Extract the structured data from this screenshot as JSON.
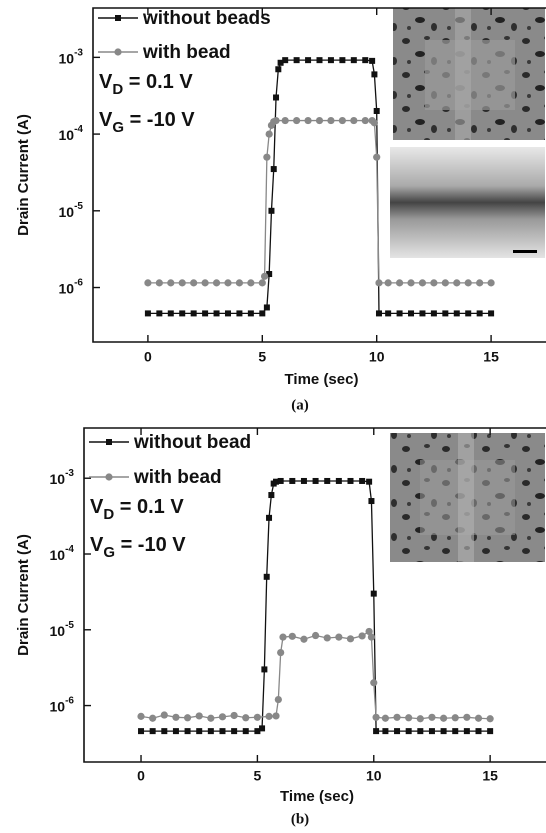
{
  "chart_data": [
    {
      "type": "line",
      "caption": "(a)",
      "xlabel": "Time (sec)",
      "ylabel": "Drain Current (A)",
      "xlim": [
        -2.4,
        17.4
      ],
      "xticks": [
        0,
        5,
        10,
        15
      ],
      "ylim": [
        1.95e-07,
        0.0044
      ],
      "log_y": true,
      "yticks": [
        {
          "value": 0.001,
          "label": "10",
          "exponent": "-3"
        },
        {
          "value": 0.0001,
          "label": "10",
          "exponent": "-4"
        },
        {
          "value": 1e-05,
          "label": "10",
          "exponent": "-5"
        },
        {
          "value": 1e-06,
          "label": "10",
          "exponent": "-6"
        }
      ],
      "annotations": [
        {
          "text": "V",
          "subscript": "D",
          "suffix": " = 0.1 V"
        },
        {
          "text": "V",
          "subscript": "G",
          "suffix": " = -10 V"
        }
      ],
      "series": [
        {
          "name": "without beads",
          "color": "#111111",
          "marker": "square",
          "x": [
            0,
            0.5,
            1,
            1.5,
            2,
            2.5,
            3,
            3.5,
            4,
            4.5,
            5,
            5.2,
            5.3,
            5.4,
            5.5,
            5.6,
            5.7,
            5.8,
            6,
            6.5,
            7,
            7.5,
            8,
            8.5,
            9,
            9.5,
            9.8,
            9.9,
            10,
            10.1,
            10.5,
            11,
            11.5,
            12,
            12.5,
            13,
            13.5,
            14,
            14.5,
            15
          ],
          "values": [
            4.6e-07,
            4.6e-07,
            4.6e-07,
            4.6e-07,
            4.6e-07,
            4.6e-07,
            4.6e-07,
            4.6e-07,
            4.6e-07,
            4.6e-07,
            4.6e-07,
            5.5e-07,
            1.5e-06,
            1e-05,
            3.5e-05,
            0.0003,
            0.0007,
            0.00085,
            0.00092,
            0.00092,
            0.00092,
            0.00092,
            0.00092,
            0.00092,
            0.00092,
            0.00092,
            0.0009,
            0.0006,
            0.0002,
            4.6e-07,
            4.6e-07,
            4.6e-07,
            4.6e-07,
            4.6e-07,
            4.6e-07,
            4.6e-07,
            4.6e-07,
            4.6e-07,
            4.6e-07,
            4.6e-07
          ]
        },
        {
          "name": "with bead",
          "color": "#888888",
          "marker": "circle",
          "x": [
            0,
            0.5,
            1,
            1.5,
            2,
            2.5,
            3,
            3.5,
            4,
            4.5,
            5,
            5.1,
            5.2,
            5.3,
            5.4,
            5.5,
            5.6,
            6,
            6.5,
            7,
            7.5,
            8,
            8.5,
            9,
            9.5,
            9.8,
            9.9,
            10,
            10.1,
            10.5,
            11,
            11.5,
            12,
            12.5,
            13,
            13.5,
            14,
            14.5,
            15
          ],
          "values": [
            1.15e-06,
            1.15e-06,
            1.15e-06,
            1.15e-06,
            1.15e-06,
            1.15e-06,
            1.15e-06,
            1.15e-06,
            1.15e-06,
            1.15e-06,
            1.15e-06,
            1.4e-06,
            5e-05,
            0.0001,
            0.00013,
            0.000145,
            0.00015,
            0.00015,
            0.00015,
            0.00015,
            0.00015,
            0.00015,
            0.00015,
            0.00015,
            0.00015,
            0.00015,
            0.00014,
            5e-05,
            1.15e-06,
            1.15e-06,
            1.15e-06,
            1.15e-06,
            1.15e-06,
            1.15e-06,
            1.15e-06,
            1.15e-06,
            1.15e-06,
            1.15e-06,
            1.15e-06
          ]
        }
      ]
    },
    {
      "type": "line",
      "caption": "(b)",
      "xlabel": "Time (sec)",
      "ylabel": "Drain Current (A)",
      "xlim": [
        -2.45,
        17.4
      ],
      "xticks": [
        0,
        5,
        10,
        15
      ],
      "ylim": [
        1.8e-07,
        0.0046
      ],
      "log_y": true,
      "yticks": [
        {
          "value": 0.001,
          "label": "10",
          "exponent": "-3"
        },
        {
          "value": 0.0001,
          "label": "10",
          "exponent": "-4"
        },
        {
          "value": 1e-05,
          "label": "10",
          "exponent": "-5"
        },
        {
          "value": 1e-06,
          "label": "10",
          "exponent": "-6"
        }
      ],
      "annotations": [
        {
          "text": "V",
          "subscript": "D",
          "suffix": " = 0.1 V"
        },
        {
          "text": "V",
          "subscript": "G",
          "suffix": " = -10 V"
        }
      ],
      "series": [
        {
          "name": "without bead",
          "color": "#111111",
          "marker": "square",
          "x": [
            0,
            0.5,
            1,
            1.5,
            2,
            2.5,
            3,
            3.5,
            4,
            4.5,
            5,
            5.2,
            5.3,
            5.4,
            5.5,
            5.6,
            5.7,
            5.8,
            6,
            6.5,
            7,
            7.5,
            8,
            8.5,
            9,
            9.5,
            9.8,
            9.9,
            10,
            10.1,
            10.5,
            11,
            11.5,
            12,
            12.5,
            13,
            13.5,
            14,
            14.5,
            15
          ],
          "values": [
            4.6e-07,
            4.6e-07,
            4.6e-07,
            4.6e-07,
            4.6e-07,
            4.6e-07,
            4.6e-07,
            4.6e-07,
            4.6e-07,
            4.6e-07,
            4.6e-07,
            5e-07,
            3e-06,
            5e-05,
            0.0003,
            0.0006,
            0.00085,
            0.0009,
            0.00092,
            0.00092,
            0.00092,
            0.00092,
            0.00092,
            0.00092,
            0.00092,
            0.00092,
            0.0009,
            0.0005,
            3e-05,
            4.6e-07,
            4.6e-07,
            4.6e-07,
            4.6e-07,
            4.6e-07,
            4.6e-07,
            4.6e-07,
            4.6e-07,
            4.6e-07,
            4.6e-07,
            4.6e-07
          ]
        },
        {
          "name": "with bead",
          "color": "#888888",
          "marker": "circle",
          "x": [
            0,
            0.5,
            1,
            1.5,
            2,
            2.5,
            3,
            3.5,
            4,
            4.5,
            5,
            5.5,
            5.8,
            5.9,
            6,
            6.1,
            6.5,
            7,
            7.5,
            8,
            8.5,
            9,
            9.5,
            9.8,
            9.9,
            10,
            10.1,
            10.5,
            11,
            11.5,
            12,
            12.5,
            13,
            13.5,
            14,
            14.5,
            15
          ],
          "values": [
            7.2e-07,
            6.8e-07,
            7.5e-07,
            7e-07,
            6.9e-07,
            7.3e-07,
            6.8e-07,
            7.1e-07,
            7.4e-07,
            6.9e-07,
            7e-07,
            7.2e-07,
            7.3e-07,
            1.2e-06,
            5e-06,
            8e-06,
            8.2e-06,
            7.5e-06,
            8.4e-06,
            7.8e-06,
            8e-06,
            7.6e-06,
            8.3e-06,
            9.5e-06,
            8e-06,
            2e-06,
            7e-07,
            6.8e-07,
            7e-07,
            6.9e-07,
            6.7e-07,
            7e-07,
            6.8e-07,
            6.9e-07,
            7e-07,
            6.8e-07,
            6.7e-07
          ]
        }
      ]
    }
  ]
}
